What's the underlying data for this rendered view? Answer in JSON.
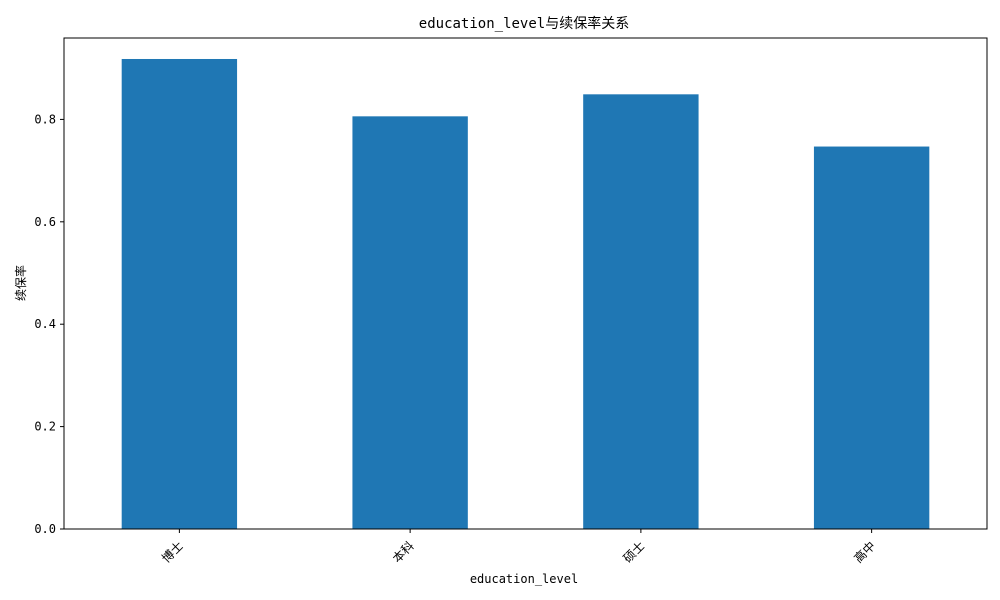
{
  "chart_data": {
    "type": "bar",
    "title": "education_level与续保率关系",
    "xlabel": "education_level",
    "ylabel": "续保率",
    "categories": [
      "博士",
      "本科",
      "硕士",
      "高中"
    ],
    "values": [
      0.918,
      0.806,
      0.849,
      0.747
    ],
    "ylim": [
      0,
      0.959
    ],
    "yticks": [
      "0.0",
      "0.2",
      "0.4",
      "0.6",
      "0.8"
    ],
    "ytick_values": [
      0.0,
      0.2,
      0.4,
      0.6,
      0.8
    ],
    "grid": false,
    "legend": "none",
    "bar_color": "#1f77b4",
    "xtick_rotation_deg": 45
  }
}
